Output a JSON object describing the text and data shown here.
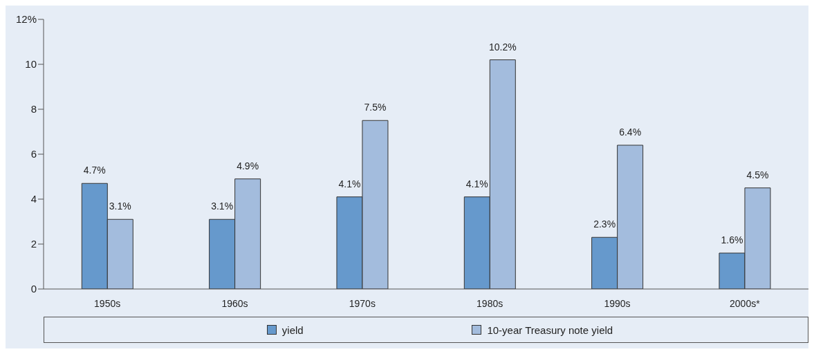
{
  "chart_data": {
    "type": "bar",
    "categories": [
      "1950s",
      "1960s",
      "1970s",
      "1980s",
      "1990s",
      "2000s*"
    ],
    "series": [
      {
        "name": "yield",
        "color": "#6699cc",
        "values": [
          4.7,
          3.1,
          4.1,
          4.1,
          2.3,
          1.6
        ],
        "value_labels": [
          "4.7%",
          "3.1%",
          "4.1%",
          "4.1%",
          "2.3%",
          "1.6%"
        ]
      },
      {
        "name": "10-year Treasury note yield",
        "color": "#a3bcdd",
        "values": [
          3.1,
          4.9,
          7.5,
          10.2,
          6.4,
          4.5
        ],
        "value_labels": [
          "3.1%",
          "4.9%",
          "7.5%",
          "10.2%",
          "6.4%",
          "4.5%"
        ]
      }
    ],
    "ylim": [
      0,
      12
    ],
    "yticks": [
      0,
      2,
      4,
      6,
      8,
      10,
      {
        "value": 12,
        "label": "12%"
      }
    ],
    "legend": "bottom"
  }
}
